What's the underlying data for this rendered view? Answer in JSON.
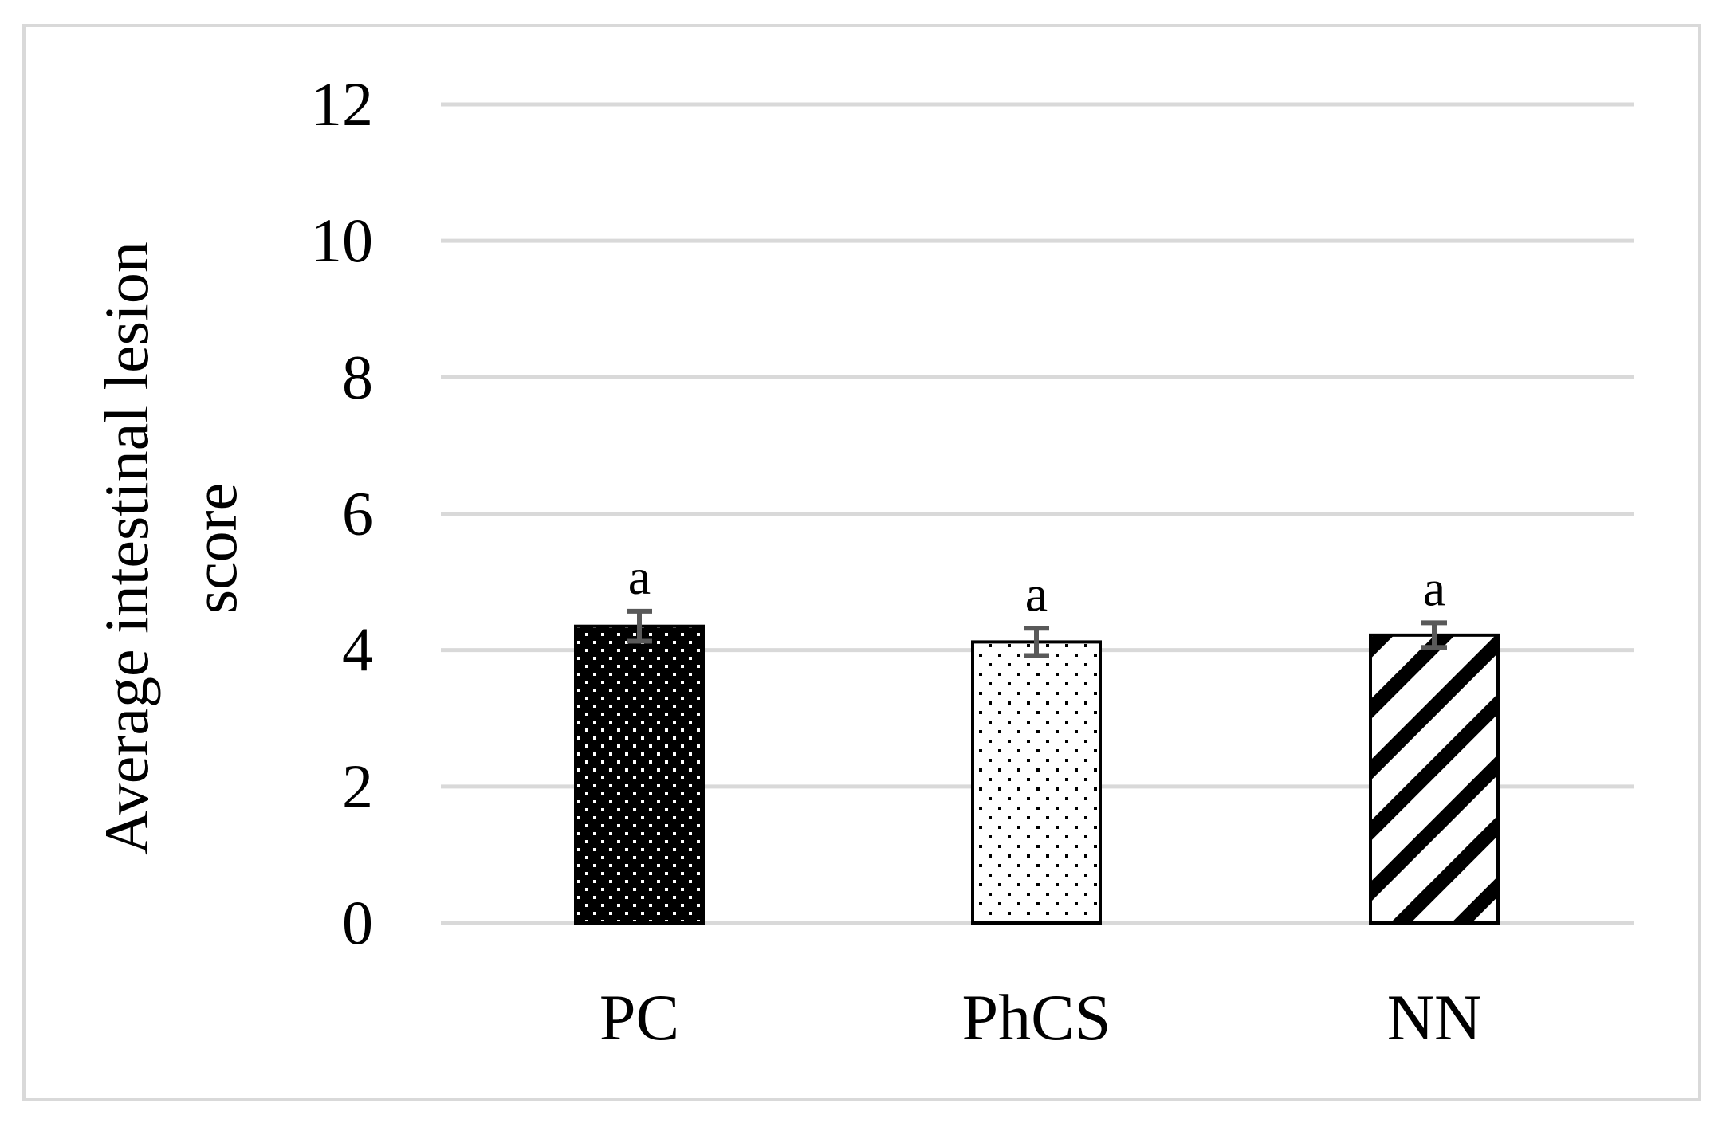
{
  "chart_data": {
    "type": "bar",
    "categories": [
      "PC",
      "PhCS",
      "NN"
    ],
    "values": [
      4.35,
      4.12,
      4.22
    ],
    "error": [
      0.22,
      0.2,
      0.18
    ],
    "significance": [
      "a",
      "a",
      "a"
    ],
    "patterns": [
      "dense-dots-dark",
      "sparse-dots-light",
      "diagonal-stripes"
    ],
    "ylabel": "Average intestinal lesion score",
    "ylabel_lines": [
      "Average intestinal lesion",
      "score"
    ],
    "xlabel": "",
    "title": "",
    "ylim": [
      0,
      12
    ],
    "yticks": [
      0,
      2,
      4,
      6,
      8,
      10,
      12
    ],
    "ytick_labels": [
      "0",
      "2",
      "4",
      "6",
      "8",
      "10",
      "12"
    ],
    "grid": true,
    "legend": "none"
  },
  "colors": {
    "gridline": "#d9d9d9",
    "frame": "#d9d9d9",
    "bar_dark": "#000000",
    "bar_light": "#ffffff",
    "error_bar": "#595959"
  }
}
